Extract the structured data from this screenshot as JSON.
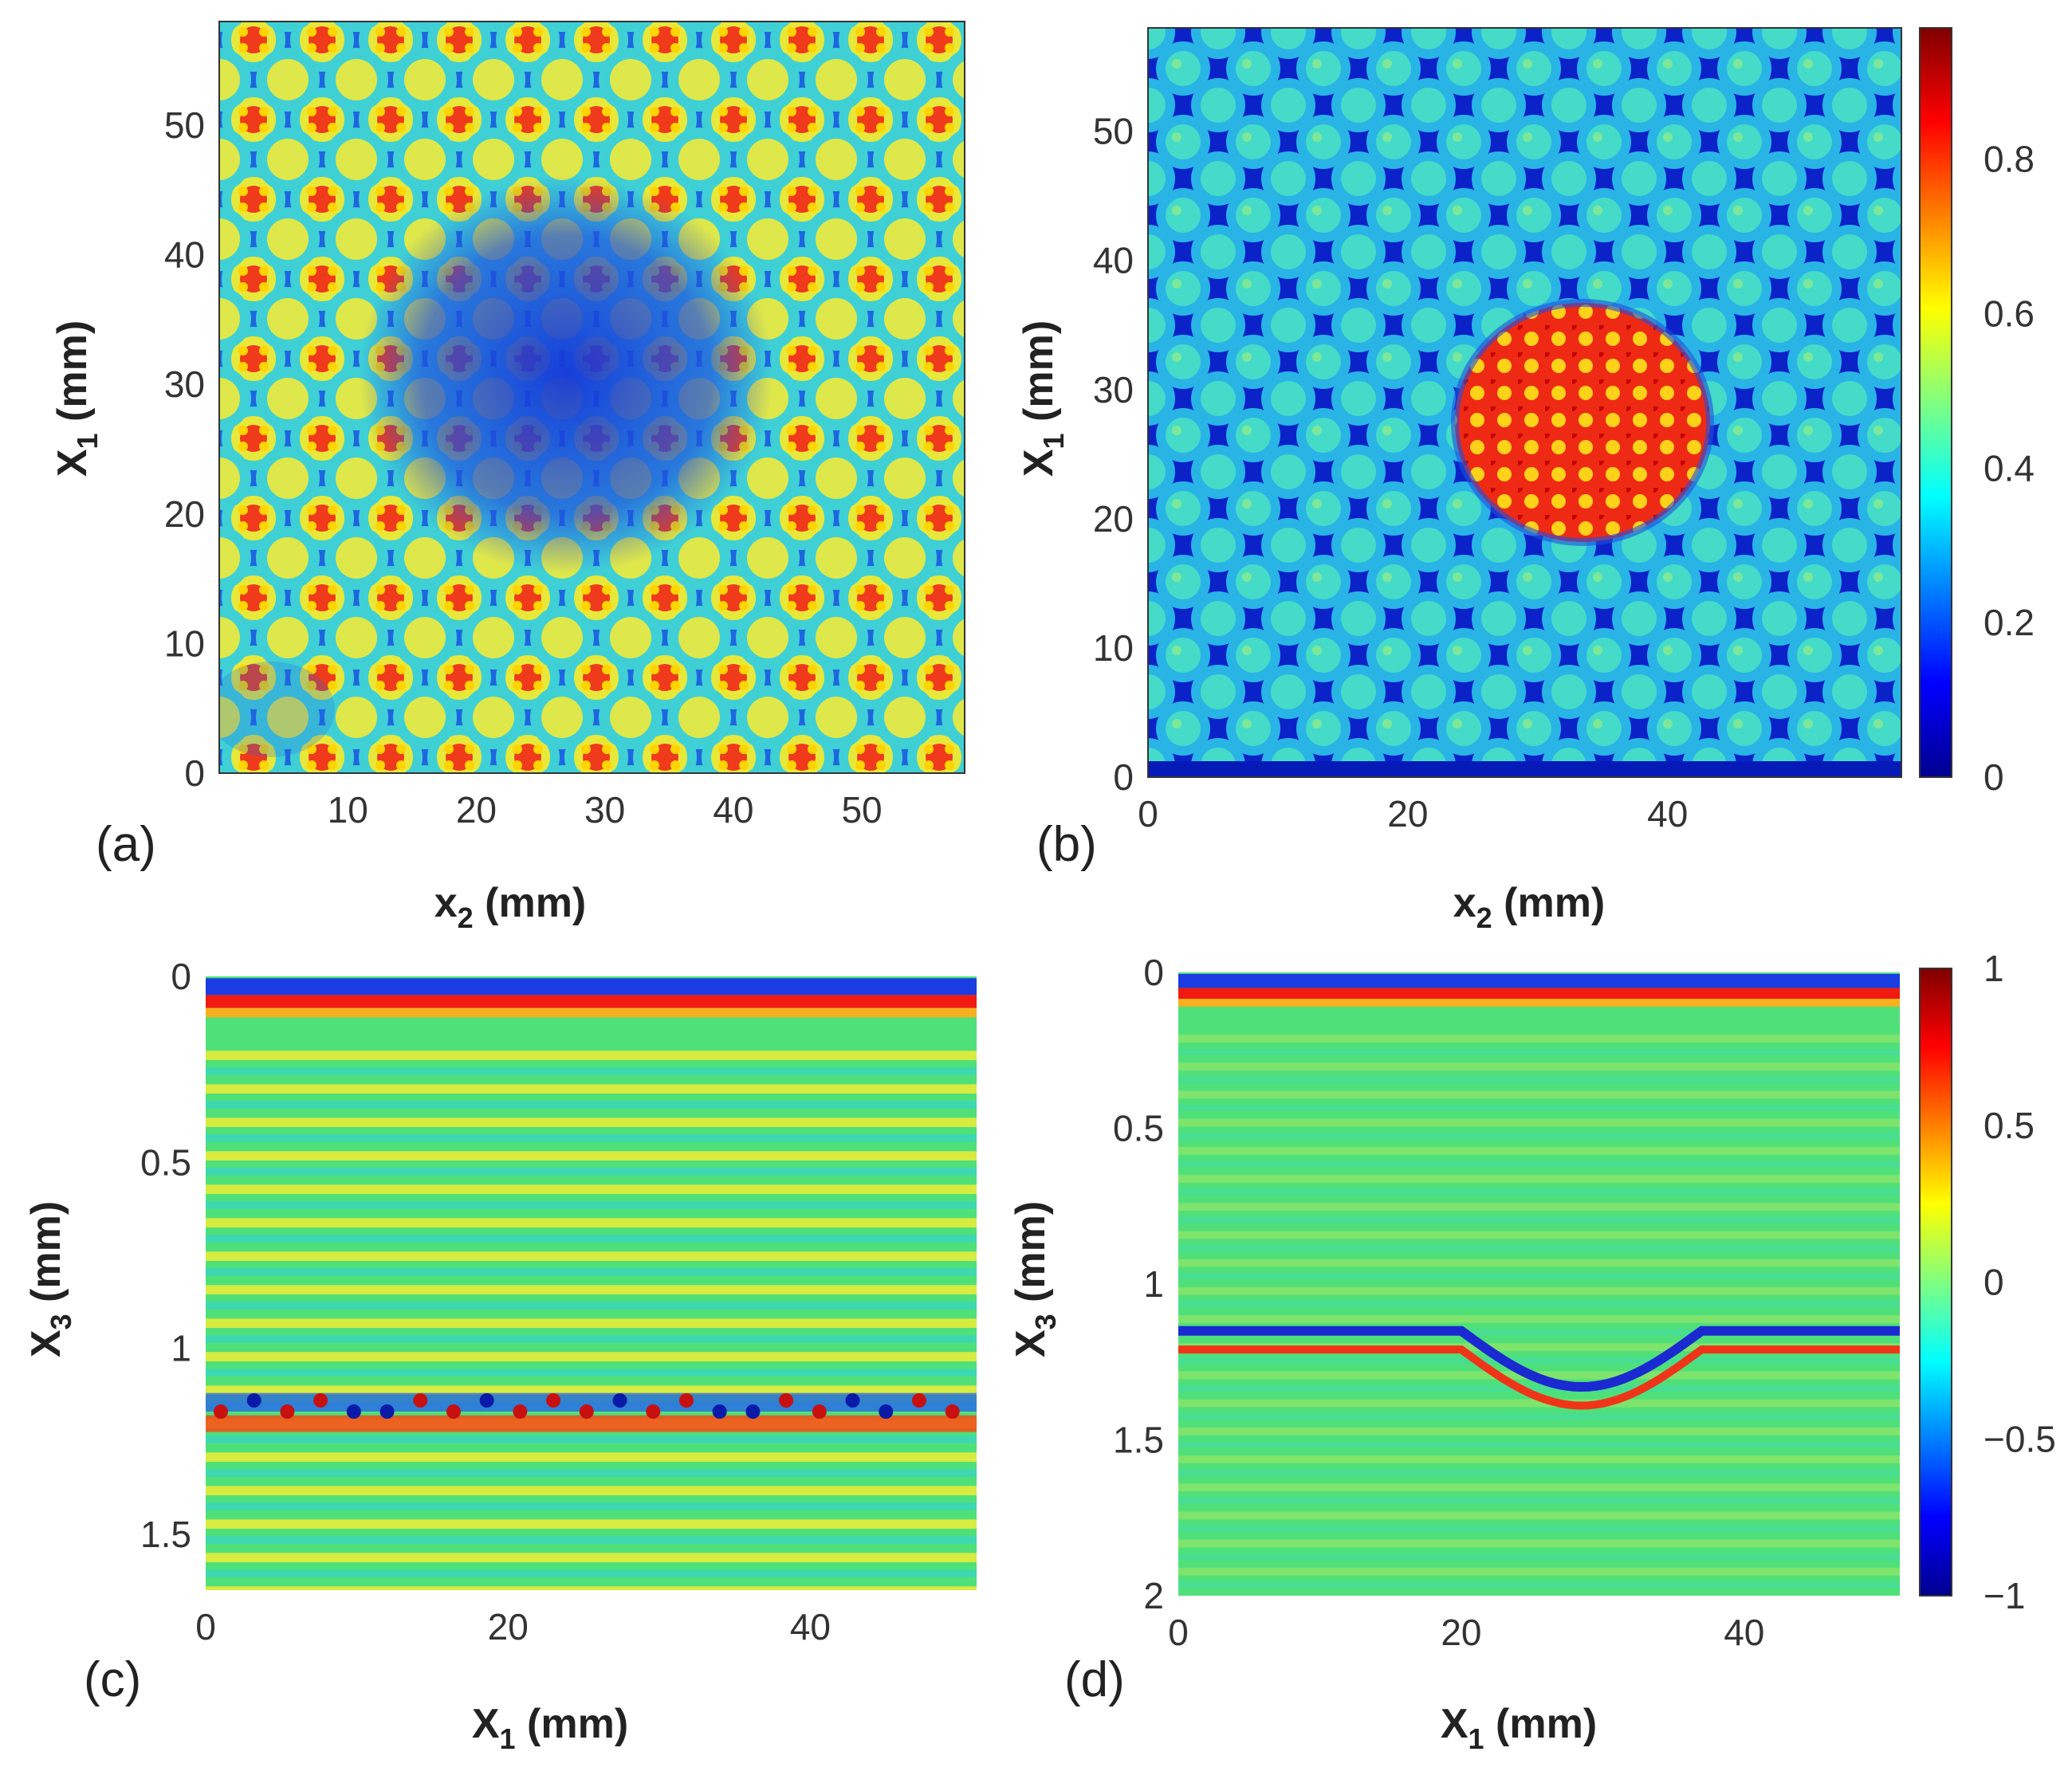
{
  "panels": {
    "a": {
      "label": "(a)",
      "xlabel": {
        "base": "x",
        "sub": "2",
        "unit": " (mm)"
      },
      "ylabel": {
        "base": "X",
        "sub": "1",
        "unit": " (mm)"
      },
      "xticks": [
        "10",
        "20",
        "30",
        "40",
        "50"
      ],
      "yticks": [
        "0",
        "10",
        "20",
        "30",
        "40",
        "50"
      ]
    },
    "b": {
      "label": "(b)",
      "xlabel": {
        "base": "x",
        "sub": "2",
        "unit": " (mm)"
      },
      "ylabel": {
        "base": "X",
        "sub": "1",
        "unit": " (mm)"
      },
      "xticks": [
        "0",
        "20",
        "40"
      ],
      "yticks": [
        "0",
        "10",
        "20",
        "30",
        "40",
        "50"
      ]
    },
    "c": {
      "label": "(c)",
      "xlabel": {
        "base": "X",
        "sub": "1",
        "unit": " (mm)"
      },
      "ylabel": {
        "base": "X",
        "sub": "3",
        "unit": " (mm)"
      },
      "xticks": [
        "0",
        "20",
        "40"
      ],
      "yticks": [
        "0",
        "0.5",
        "1",
        "1.5"
      ]
    },
    "d": {
      "label": "(d)",
      "xlabel": {
        "base": "X",
        "sub": "1",
        "unit": " (mm)"
      },
      "ylabel": {
        "base": "X",
        "sub": "3",
        "unit": " (mm)"
      },
      "xticks": [
        "0",
        "20",
        "40"
      ],
      "yticks": [
        "0",
        "0.5",
        "1",
        "1.5",
        "2"
      ]
    }
  },
  "colorbars": {
    "top": {
      "ticks": [
        "0",
        "0.2",
        "0.4",
        "0.6",
        "0.8"
      ]
    },
    "bottom": {
      "ticks": [
        "-1",
        "-0.5",
        "0",
        "0.5",
        "1"
      ],
      "tick_text": [
        "−1",
        "−0.5",
        "0",
        "0.5",
        "1"
      ]
    }
  },
  "chart_data": [
    {
      "type": "heatmap",
      "panel": "a",
      "title": "",
      "xlabel": "x2 (mm)",
      "ylabel": "X1 (mm)",
      "xlim": [
        0,
        58
      ],
      "ylim": [
        0,
        58
      ],
      "xticks": [
        10,
        20,
        30,
        40,
        50
      ],
      "yticks": [
        0,
        10,
        20,
        30,
        40,
        50
      ],
      "color_range": [
        0,
        0.97
      ],
      "colormap": "jet",
      "description_values": {
        "background_level": 0.3,
        "cell_peak_level": 0.95,
        "low_region_center": [
          30,
          30
        ],
        "low_region_radius": 13
      }
    },
    {
      "type": "heatmap",
      "panel": "b",
      "title": "",
      "xlabel": "x2 (mm)",
      "ylabel": "X1 (mm)",
      "xlim": [
        0,
        58
      ],
      "ylim": [
        0,
        58
      ],
      "xticks": [
        0,
        20,
        40
      ],
      "yticks": [
        0,
        10,
        20,
        30,
        40,
        50
      ],
      "color_range": [
        0,
        0.97
      ],
      "colormap": "jet",
      "description_values": {
        "background_level": 0.07,
        "cell_level": 0.42,
        "high_region_center": [
          33,
          26
        ],
        "high_region_radius": 9,
        "high_region_level": 0.88
      }
    },
    {
      "type": "heatmap",
      "panel": "c",
      "title": "",
      "xlabel": "X1 (mm)",
      "ylabel": "X3 (mm)",
      "xlim": [
        0,
        51
      ],
      "ylim": [
        1.65,
        0
      ],
      "xticks": [
        0,
        20,
        40
      ],
      "yticks": [
        0,
        0.5,
        1,
        1.5
      ],
      "color_range": [
        -1,
        1
      ],
      "colormap": "jet",
      "description_values": {
        "surface_echo_depth": 0.05,
        "defect_echo_depth": 1.15,
        "layer_spacing": 0.09
      }
    },
    {
      "type": "heatmap",
      "panel": "d",
      "title": "",
      "xlabel": "X1 (mm)",
      "ylabel": "X3 (mm)",
      "xlim": [
        0,
        51
      ],
      "ylim": [
        2,
        0
      ],
      "xticks": [
        0,
        20,
        40
      ],
      "yticks": [
        0,
        0.5,
        1,
        1.5,
        2
      ],
      "color_range": [
        -1,
        1
      ],
      "colormap": "jet",
      "description_values": {
        "surface_echo_depth": 0.05,
        "defect_echo_depth": 1.15,
        "defect_dip_center_x": 28,
        "defect_dip_max_depth": 1.33
      }
    }
  ]
}
